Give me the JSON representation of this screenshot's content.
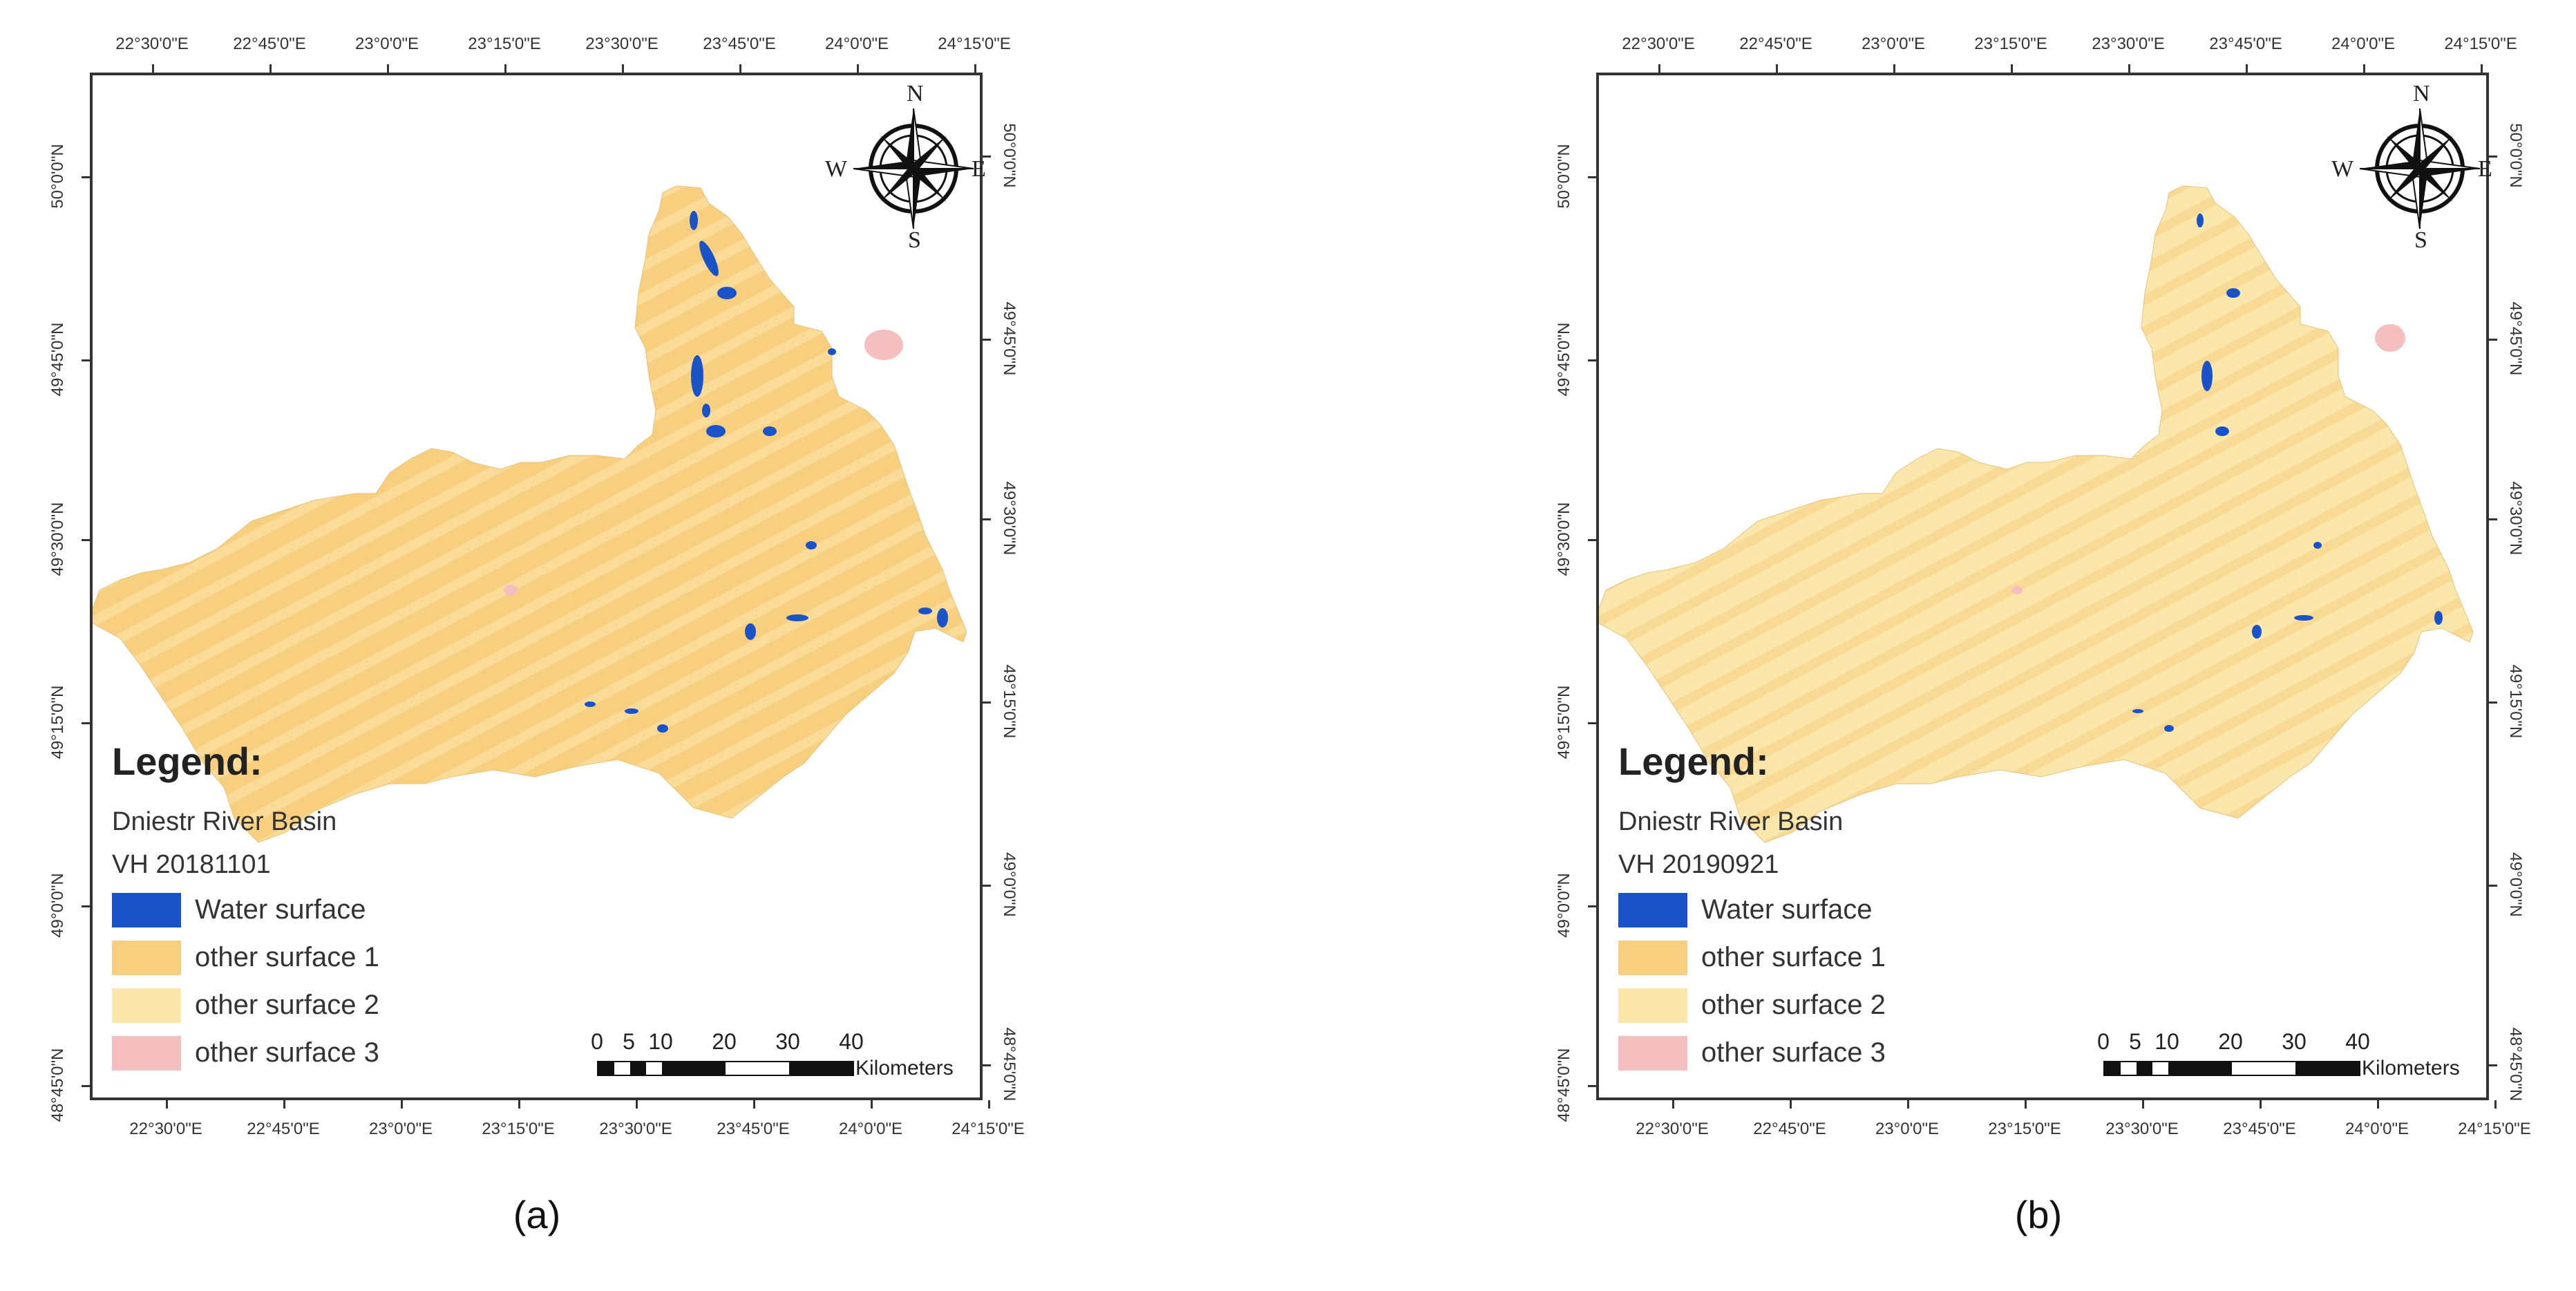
{
  "figure": {
    "axis_ticks": {
      "top_lon": [
        "22°30'0\"E",
        "22°45'0\"E",
        "23°0'0\"E",
        "23°15'0\"E",
        "23°30'0\"E",
        "23°45'0\"E",
        "24°0'0\"E",
        "24°15'0\"E"
      ],
      "bottom_lon": [
        "22°30'0\"E",
        "22°45'0\"E",
        "23°0'0\"E",
        "23°15'0\"E",
        "23°30'0\"E",
        "23°45'0\"E",
        "24°0'0\"E",
        "24°15'0\"E"
      ],
      "left_lat": [
        "50°0'0\"N",
        "49°45'0\"N",
        "49°30'0\"N",
        "49°15'0\"N",
        "49°0'0\"N",
        "48°45'0\"N"
      ],
      "right_lat": [
        "50°0'0\"N",
        "49°45'0\"N",
        "49°30'0\"N",
        "49°15'0\"N",
        "49°0'0\"N",
        "48°45'0\"N"
      ]
    },
    "compass": {
      "n": "N",
      "s": "S",
      "e": "E",
      "w": "W"
    },
    "legend_items": [
      {
        "label": "Water surface",
        "color": "#1a52c7"
      },
      {
        "label": "other surface 1",
        "color": "#f8cf7f"
      },
      {
        "label": "other surface 2",
        "color": "#fbe7ac"
      },
      {
        "label": "other surface 3",
        "color": "#f6bfbf"
      }
    ],
    "legend_title": "Legend:",
    "basin_name": "Dniestr  River Basin",
    "scalebar": {
      "ticks": [
        "0",
        "5",
        "10",
        "20",
        "30",
        "40"
      ],
      "unit": "Kilometers"
    }
  },
  "panels": [
    {
      "caption": "(a)",
      "date_label": "VH 20181101",
      "dominant": "other surface 1"
    },
    {
      "caption": "(b)",
      "date_label": "VH 20190921",
      "dominant": "other surface 2"
    }
  ]
}
